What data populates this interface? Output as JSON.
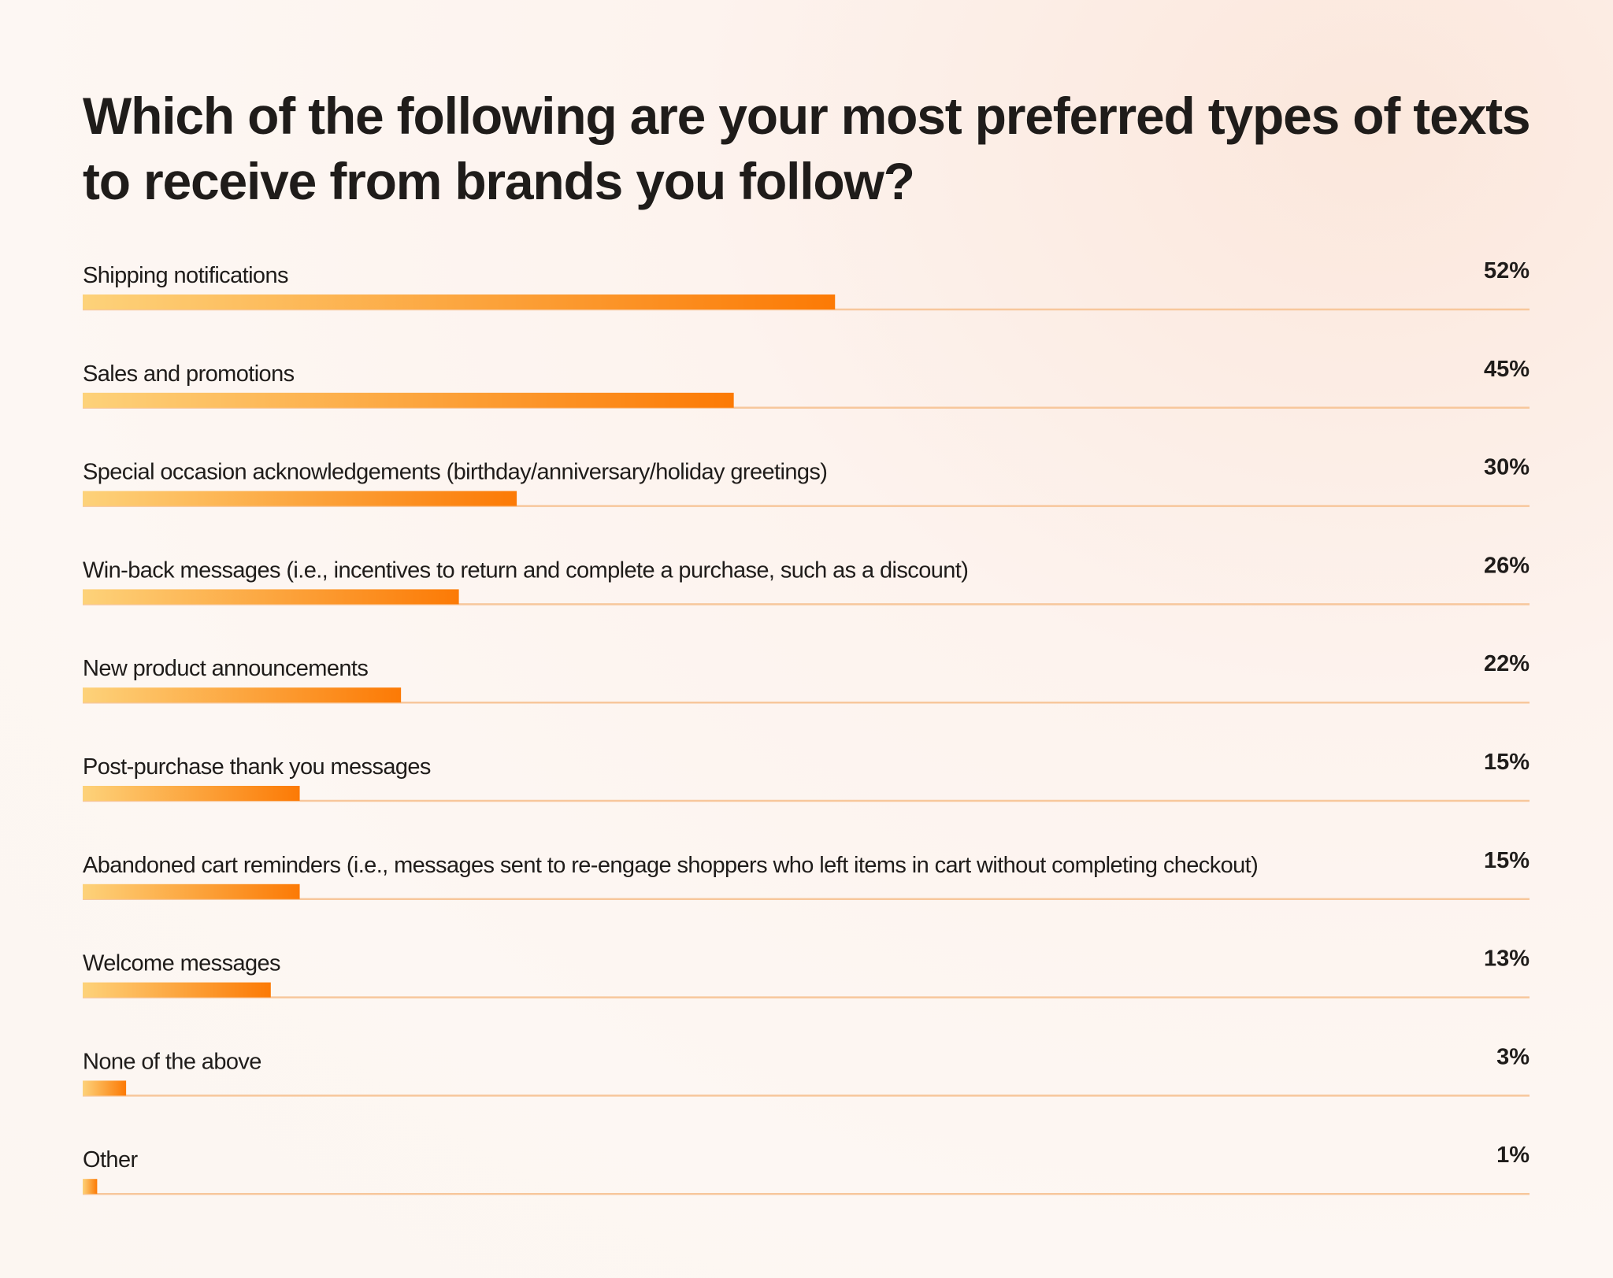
{
  "chart_data": {
    "type": "bar",
    "orientation": "horizontal",
    "title": "Which of the following are your most preferred types of texts to receive from brands you follow?",
    "categories": [
      "Shipping notifications",
      "Sales and promotions",
      "Special occasion acknowledgements (birthday/anniversary/holiday greetings)",
      "Win-back messages (i.e., incentives to return and complete a purchase, such as a discount)",
      "New product announcements",
      "Post-purchase thank you messages",
      "Abandoned cart reminders (i.e., messages sent to re-engage shoppers who left items in cart without completing checkout)",
      "Welcome messages",
      "None of the above",
      "Other"
    ],
    "values": [
      52,
      45,
      30,
      26,
      22,
      15,
      15,
      13,
      3,
      1
    ],
    "value_labels": [
      "52%",
      "45%",
      "30%",
      "26%",
      "22%",
      "15%",
      "15%",
      "13%",
      "3%",
      "1%"
    ],
    "xlim": [
      0,
      100
    ],
    "unit": "%",
    "grid": false,
    "legend": "none",
    "colors": {
      "bar_start": "#fdd27a",
      "bar_end": "#fc7a05",
      "track": "#f7c79c",
      "text": "#1f1c1a"
    }
  }
}
